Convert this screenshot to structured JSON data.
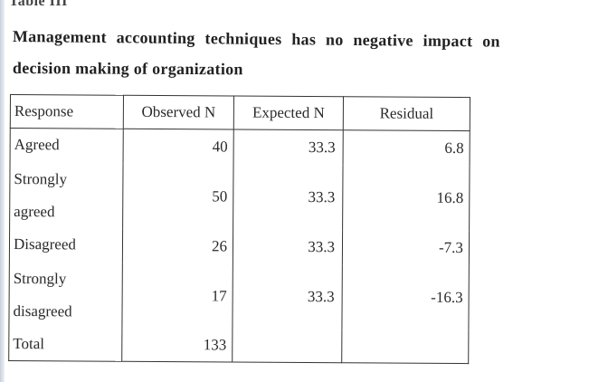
{
  "document": {
    "table_label": "Table III",
    "caption_line1": "Management accounting techniques has no negative impact on",
    "caption_line2": "decision making of organization"
  },
  "table": {
    "headers": [
      "Response",
      "Observed N",
      "Expected N",
      "Residual"
    ],
    "rows": [
      {
        "response_lines": [
          "Agreed"
        ],
        "observed": "40",
        "expected": "33.3",
        "residual": "6.8"
      },
      {
        "response_lines": [
          "Strongly",
          "agreed"
        ],
        "observed": "50",
        "expected": "33.3",
        "residual": "16.8"
      },
      {
        "response_lines": [
          "Disagreed"
        ],
        "observed": "26",
        "expected": "33.3",
        "residual": "-7.3"
      },
      {
        "response_lines": [
          "Strongly",
          "disagreed"
        ],
        "observed": "17",
        "expected": "33.3",
        "residual": "-16.3"
      },
      {
        "response_lines": [
          "Total"
        ],
        "observed": "133",
        "expected": "",
        "residual": ""
      }
    ]
  }
}
